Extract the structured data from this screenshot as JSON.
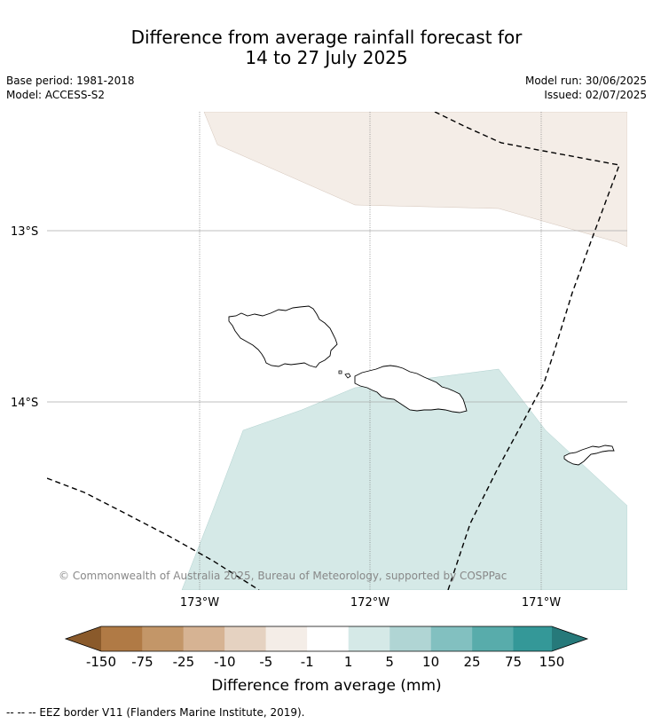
{
  "title": {
    "line1": "Difference from average rainfall forecast for",
    "line2": "14 to 27 July 2025"
  },
  "meta": {
    "base_period": "Base period: 1981-2018",
    "model": "Model: ACCESS-S2",
    "model_run": "Model run: 30/06/2025",
    "issued": "Issued: 02/07/2025"
  },
  "map": {
    "latitude_labels": [
      "13°S",
      "14°S"
    ],
    "longitude_labels": [
      "173°W",
      "172°W",
      "171°W"
    ],
    "copyright": "© Commonwealth of Australia 2025, Bureau of Meteorology, supported by COSPPac",
    "region_colors": {
      "drier": "#f4ede7",
      "wetter": "#d5e9e7"
    }
  },
  "colorbar": {
    "ticks": [
      "-150",
      "-75",
      "-25",
      "-10",
      "-5",
      "-1",
      "1",
      "5",
      "10",
      "25",
      "75",
      "150"
    ],
    "colors": [
      "#8a5a2b",
      "#b07a45",
      "#c39668",
      "#d6b393",
      "#e5d2c1",
      "#f4ede7",
      "#ffffff",
      "#d5e9e7",
      "#b0d5d4",
      "#82c0c0",
      "#58acab",
      "#349898",
      "#26797a"
    ],
    "label": "Difference from average (mm)"
  },
  "footnote": "--  --  -- EEZ border V11 (Flanders Marine Institute, 2019)."
}
